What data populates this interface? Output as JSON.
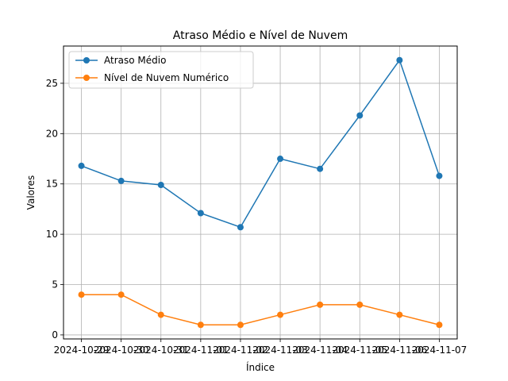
{
  "chart_data": {
    "type": "line",
    "title": "Atraso Médio e Nível de Nuvem",
    "xlabel": "Índice",
    "ylabel": "Valores",
    "categories": [
      "2024-10-29",
      "2024-10-30",
      "2024-10-31",
      "2024-11-01",
      "2024-11-02",
      "2024-11-03",
      "2024-11-04",
      "2024-11-05",
      "2024-11-06",
      "2024-11-07"
    ],
    "ylim": [
      -0.4,
      28.7
    ],
    "yticks": [
      0,
      5,
      10,
      15,
      20,
      25
    ],
    "grid": true,
    "legend_position": "top-left",
    "series": [
      {
        "name": "Atraso Médio",
        "color": "#1f77b4",
        "values": [
          16.8,
          15.3,
          14.9,
          12.1,
          10.7,
          17.5,
          16.5,
          21.8,
          27.3,
          15.8
        ]
      },
      {
        "name": "Nível de Nuvem Numérico",
        "color": "#ff7f0e",
        "values": [
          4,
          4,
          2,
          1,
          1,
          2,
          3,
          3,
          2,
          1
        ]
      }
    ]
  }
}
